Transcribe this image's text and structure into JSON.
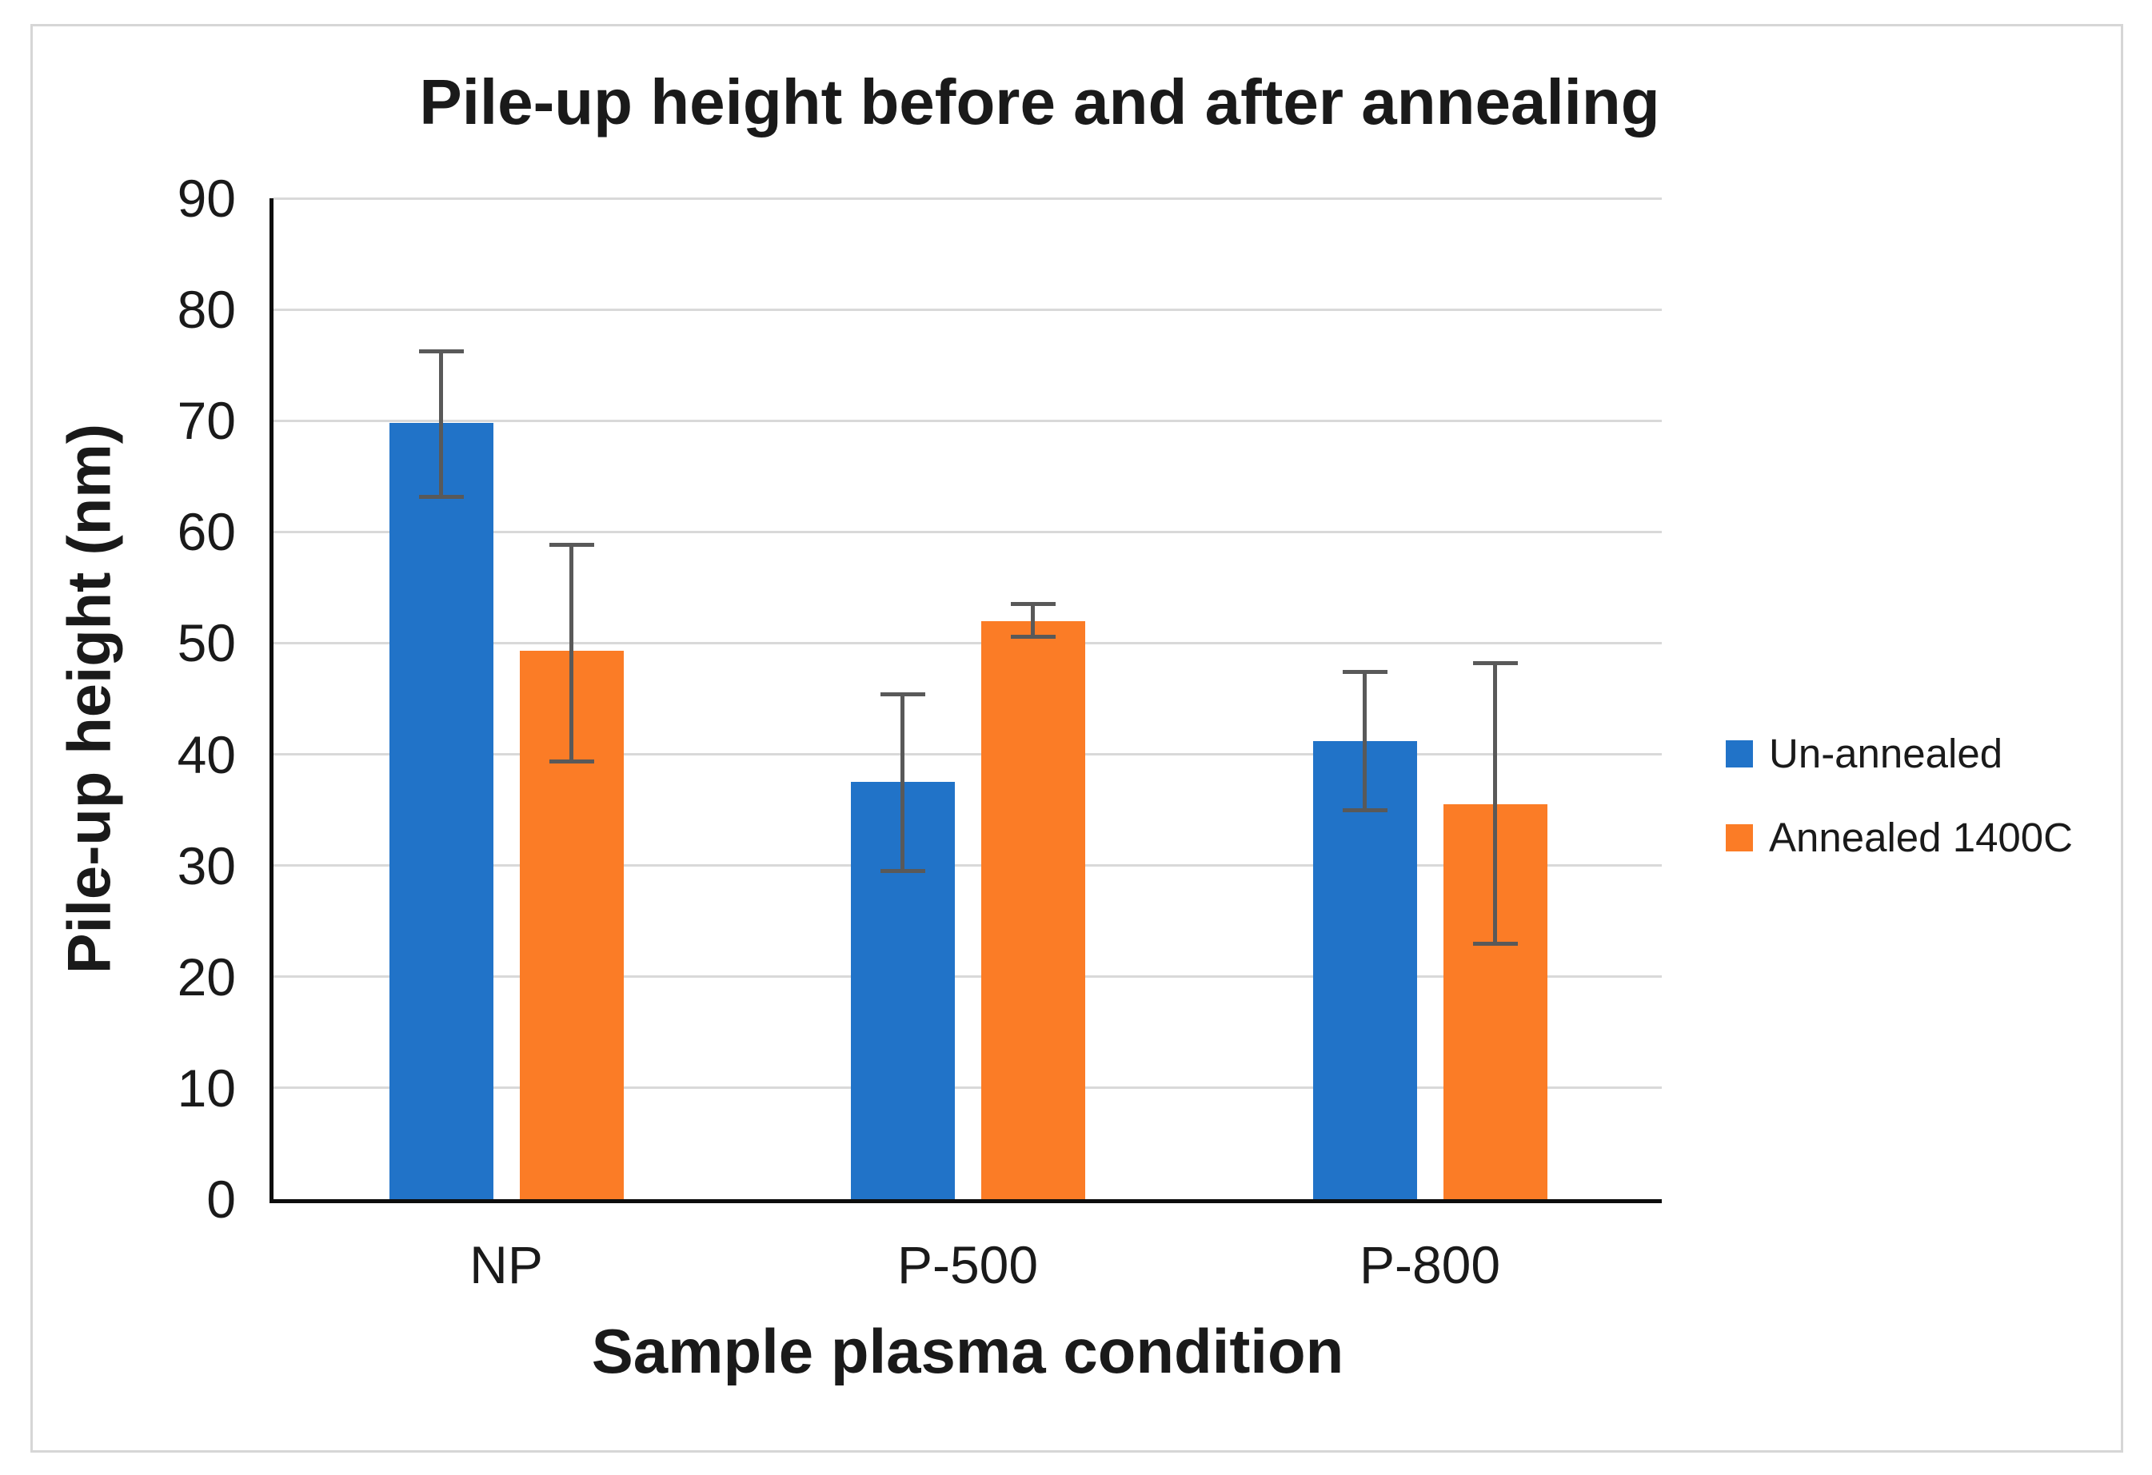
{
  "chart_data": {
    "type": "bar",
    "title": "Pile-up height before and after annealing",
    "xlabel": "Sample plasma condition",
    "ylabel": "Pile-up height (nm)",
    "categories": [
      "NP",
      "P-500",
      "P-800"
    ],
    "series": [
      {
        "name": "Un-annealed",
        "color": "#2173c8",
        "values": [
          69.8,
          37.5,
          41.2
        ],
        "error_up": [
          6.6,
          8.1,
          6.4
        ],
        "error_down": [
          6.8,
          8.2,
          6.4
        ]
      },
      {
        "name": "Annealed 1400C",
        "color": "#fb7c26",
        "values": [
          49.3,
          52.0,
          35.5
        ],
        "error_up": [
          9.7,
          1.7,
          12.9
        ],
        "error_down": [
          10.1,
          1.6,
          12.7
        ]
      }
    ],
    "ylim": [
      0,
      90
    ],
    "yticks": [
      0,
      10,
      20,
      30,
      40,
      50,
      60,
      70,
      80,
      90
    ],
    "grid": true,
    "legend_position": "right",
    "error_bar_color": "#595959",
    "gridline_color": "#d9d9d9",
    "axis_color": "#0d0d0d"
  }
}
